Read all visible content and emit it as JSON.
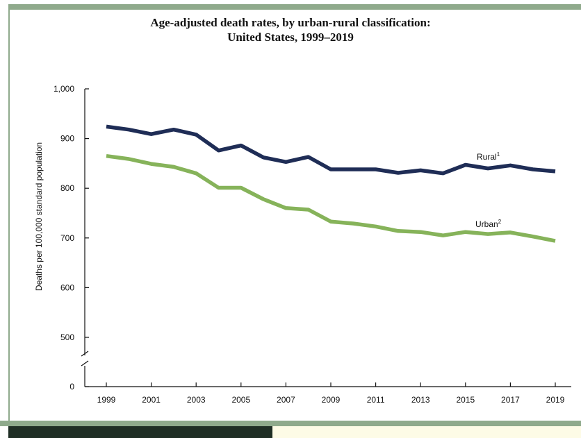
{
  "chart_data": {
    "type": "line",
    "title_lines": [
      "Age-adjusted death rates, by urban-rural classification:",
      "United States, 1999–2019"
    ],
    "xlabel": "",
    "ylabel": "Deaths per 100,000 standard population",
    "x": [
      1999,
      2000,
      2001,
      2002,
      2003,
      2004,
      2005,
      2006,
      2007,
      2008,
      2009,
      2010,
      2011,
      2012,
      2013,
      2014,
      2015,
      2016,
      2017,
      2018,
      2019
    ],
    "x_tick_labels": [
      "1999",
      "2001",
      "2003",
      "2005",
      "2007",
      "2009",
      "2011",
      "2013",
      "2015",
      "2017",
      "2019"
    ],
    "y_tick_labels": [
      "0",
      "500",
      "600",
      "700",
      "800",
      "900",
      "1,000"
    ],
    "ylim": [
      500,
      1000
    ],
    "y_axis_break": true,
    "grid": false,
    "series": [
      {
        "name": "Rural",
        "superscript": "1",
        "color": "#1f2d56",
        "values": [
          924,
          918,
          909,
          918,
          908,
          876,
          886,
          862,
          853,
          863,
          838,
          838,
          838,
          831,
          836,
          830,
          847,
          840,
          846,
          838,
          834
        ]
      },
      {
        "name": "Urban",
        "superscript": "2",
        "color": "#86b35a",
        "values": [
          865,
          859,
          849,
          843,
          830,
          801,
          801,
          778,
          760,
          757,
          733,
          729,
          723,
          714,
          712,
          705,
          712,
          708,
          711,
          703,
          694
        ]
      }
    ]
  },
  "frame": {
    "accent_color": "#8faa8c",
    "footer_dark_color": "#1f2e25",
    "footer_light_color": "#fdfbe6"
  }
}
